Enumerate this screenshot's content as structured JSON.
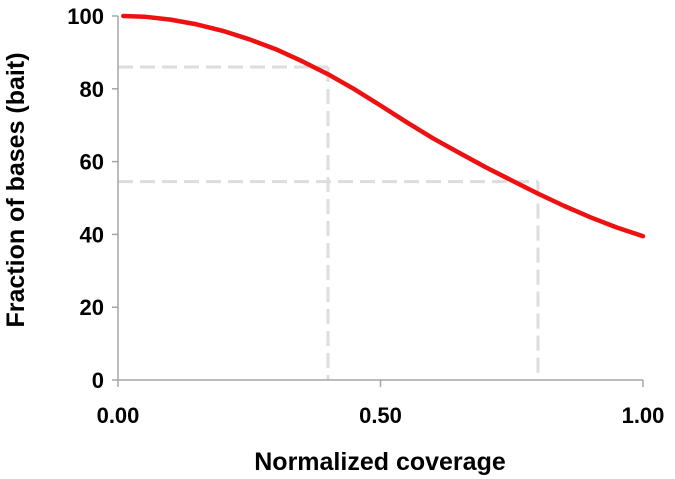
{
  "chart_data": {
    "type": "line",
    "title": "",
    "xlabel": "Normalized coverage",
    "ylabel": "Fraction of bases (bait)",
    "xlim": [
      0,
      1
    ],
    "ylim": [
      0,
      100
    ],
    "x_ticks": [
      0,
      0.5,
      1
    ],
    "x_tick_labels": [
      "0.00",
      "0.50",
      "1.00"
    ],
    "y_ticks": [
      0,
      20,
      40,
      60,
      80,
      100
    ],
    "y_tick_labels": [
      "0",
      "20",
      "40",
      "60",
      "80",
      "100"
    ],
    "grid": false,
    "series": [
      {
        "color": "#ee1111",
        "x": [
          0.01,
          0.05,
          0.1,
          0.15,
          0.2,
          0.25,
          0.3,
          0.35,
          0.4,
          0.45,
          0.5,
          0.55,
          0.6,
          0.65,
          0.7,
          0.75,
          0.8,
          0.85,
          0.9,
          0.95,
          1.0
        ],
        "y": [
          100,
          99.8,
          99.0,
          97.7,
          95.9,
          93.6,
          90.9,
          87.6,
          84.0,
          79.9,
          75.4,
          70.8,
          66.4,
          62.4,
          58.5,
          54.8,
          51.2,
          47.8,
          44.7,
          41.9,
          39.5
        ]
      }
    ],
    "reference_lines": [
      {
        "x": 0.4,
        "y": 86
      },
      {
        "x": 0.8,
        "y": 54.5
      }
    ],
    "reference_color": "#dddddd"
  }
}
